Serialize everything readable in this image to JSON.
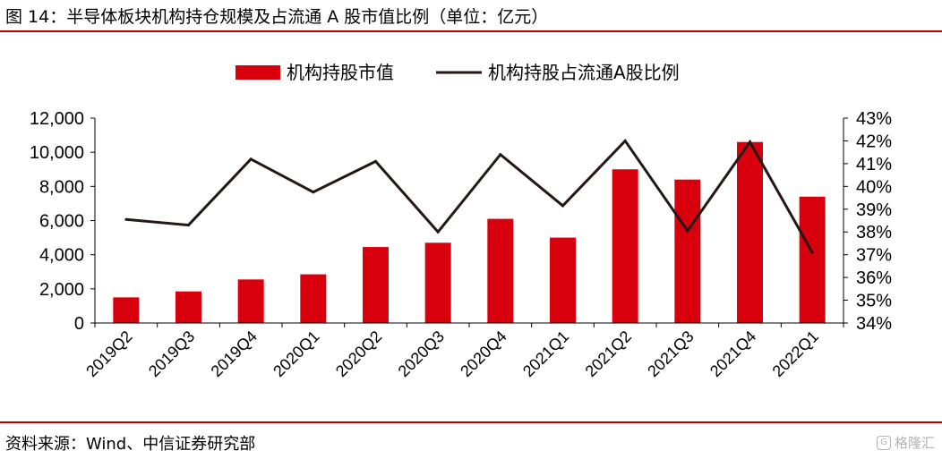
{
  "figure": {
    "title": "图 14：半导体板块机构持仓规模及占流通 A 股市值比例（单位：亿元）",
    "source": "资料来源：Wind、中信证券研究部",
    "watermark": "格隆汇",
    "watermark_icon": "G"
  },
  "colors": {
    "rule": "#c00000",
    "bar": "#d9000d",
    "line": "#231815",
    "axis": "#000000"
  },
  "chart_data": {
    "type": "bar",
    "categories": [
      "2019Q2",
      "2019Q3",
      "2019Q4",
      "2020Q1",
      "2020Q2",
      "2020Q3",
      "2020Q4",
      "2021Q1",
      "2021Q2",
      "2021Q3",
      "2021Q4",
      "2022Q1"
    ],
    "series": [
      {
        "name": "机构持股市值",
        "type": "bar",
        "axis": "left",
        "values": [
          1500,
          1850,
          2550,
          2850,
          4450,
          4700,
          6100,
          5000,
          9000,
          8400,
          10600,
          7400
        ]
      },
      {
        "name": "机构持股占流通A股比例",
        "type": "line",
        "axis": "right",
        "values": [
          38.55,
          38.3,
          41.2,
          39.75,
          41.1,
          38.0,
          41.4,
          39.15,
          42.0,
          38.05,
          41.95,
          37.1
        ]
      }
    ],
    "ylim_left": [
      0,
      12000
    ],
    "yticks_left": [
      "0",
      "2,000",
      "4,000",
      "6,000",
      "8,000",
      "10,000",
      "12,000"
    ],
    "ylim_right": [
      34,
      43
    ],
    "yticks_right": [
      "34%",
      "35%",
      "36%",
      "37%",
      "38%",
      "39%",
      "40%",
      "41%",
      "42%",
      "43%"
    ],
    "legend_position": "top-center",
    "grid": false
  }
}
